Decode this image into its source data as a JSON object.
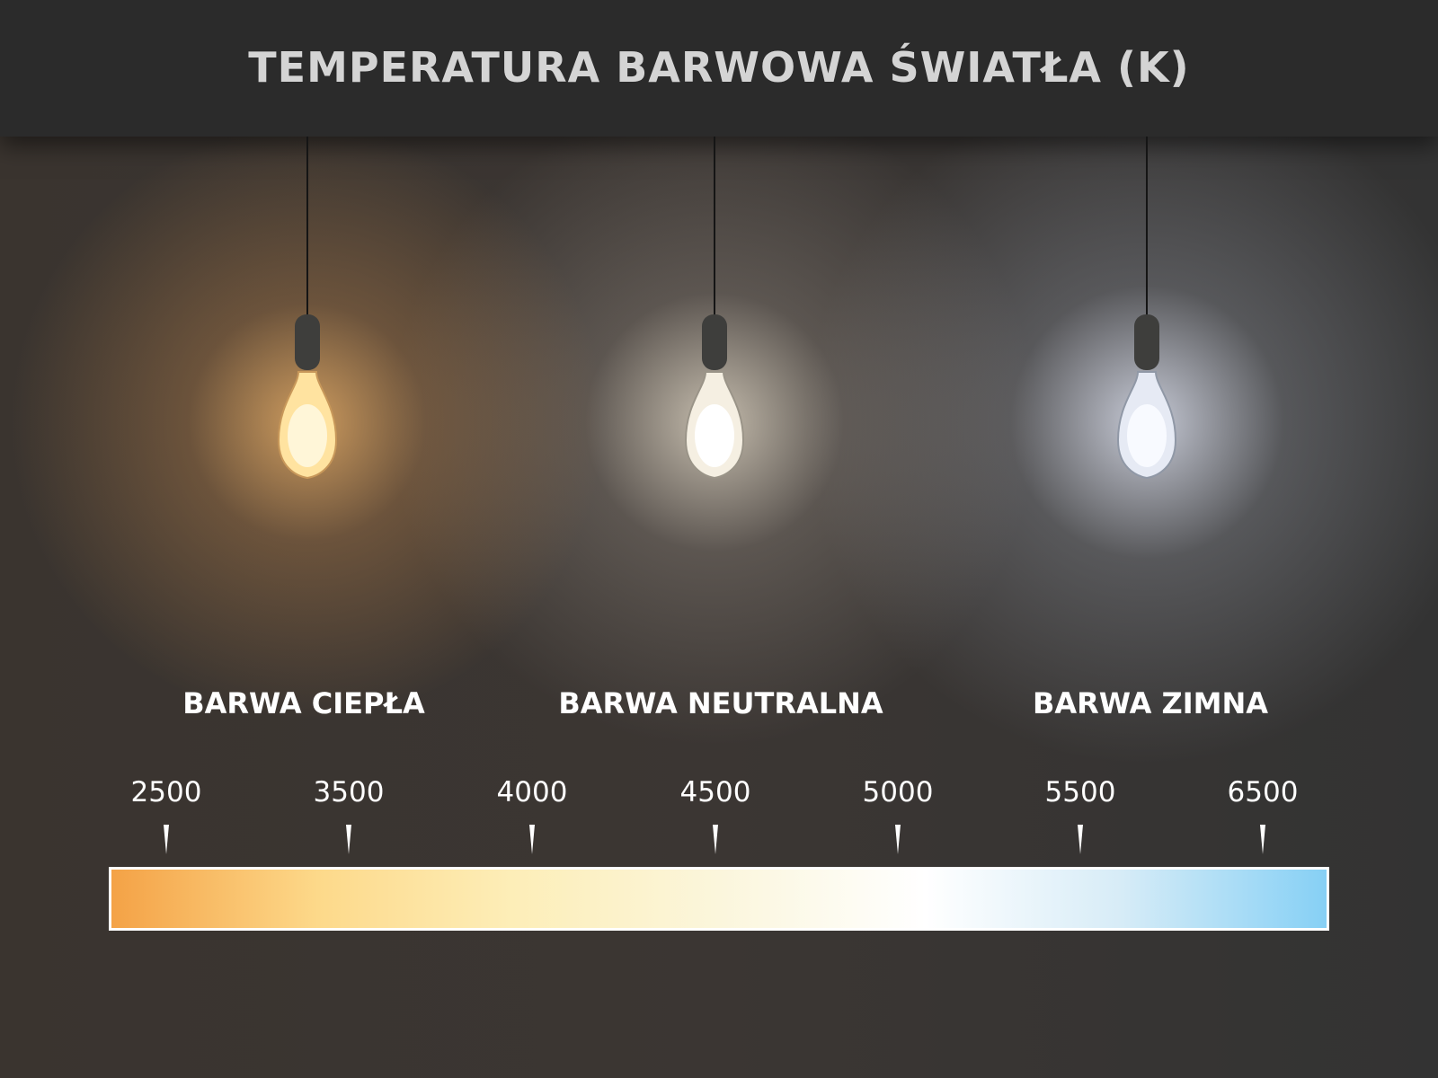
{
  "title": "TEMPERATURA BARWOWA ŚWIATŁA (K)",
  "categories": [
    {
      "label": "BARWA CIEPŁA",
      "glow_color": "#f7b46a"
    },
    {
      "label": "BARWA NEUTRALNA",
      "glow_color": "#fff4e0"
    },
    {
      "label": "BARWA ZIMNA",
      "glow_color": "#e6ecff"
    }
  ],
  "scale": {
    "unit": "K",
    "ticks": [
      "2500",
      "3500",
      "4000",
      "4500",
      "5000",
      "5500",
      "6500"
    ],
    "gradient_colors": [
      "#f4a246",
      "#fdd98a",
      "#fdeeb8",
      "#fbf6dc",
      "#ffffff",
      "#d7ecf7",
      "#86d0f5"
    ]
  }
}
